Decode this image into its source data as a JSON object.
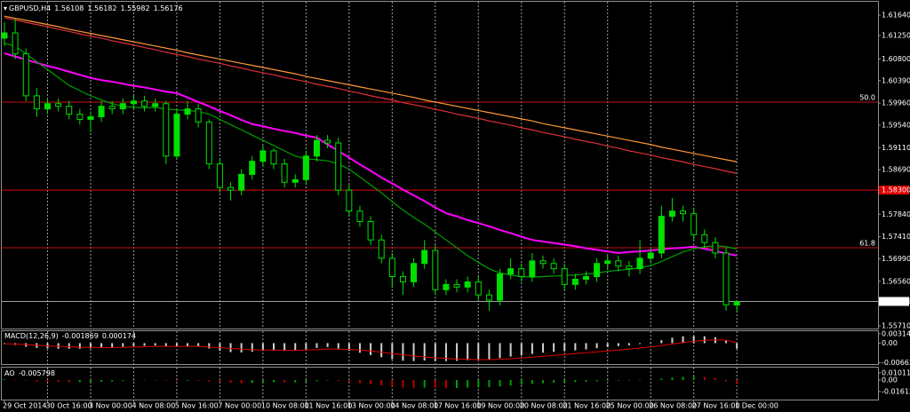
{
  "chart_data": {
    "type": "candlestick",
    "title": "GBPUSD,H4",
    "categories": [
      "29 Oct 2014",
      null,
      null,
      null,
      "30 Oct 16:00",
      null,
      null,
      null,
      "3 Nov 00:00",
      null,
      null,
      null,
      "4 Nov 08:00",
      null,
      null,
      null,
      "5 Nov 16:00",
      null,
      null,
      null,
      "7 Nov 00:00",
      null,
      null,
      null,
      "10 Nov 08:00",
      null,
      null,
      null,
      "11 Nov 16:00",
      null,
      null,
      null,
      "13 Nov 00:00",
      null,
      null,
      null,
      "14 Nov 08:00",
      null,
      null,
      null,
      "17 Nov 16:00",
      null,
      null,
      null,
      "19 Nov 00:00",
      null,
      null,
      null,
      "20 Nov 08:00",
      null,
      null,
      null,
      "21 Nov 16:00",
      null,
      null,
      null,
      "25 Nov 00:00",
      null,
      null,
      null,
      "26 Nov 08:00",
      null,
      null,
      null,
      "27 Nov 16:00",
      null,
      null,
      null,
      "1 Dec 00:00"
    ],
    "open": [
      1.612,
      1.613,
      1.609,
      1.601,
      1.5985,
      1.5995,
      1.599,
      1.5975,
      1.5965,
      1.597,
      1.599,
      1.5985,
      1.5995,
      1.6,
      1.599,
      1.5995,
      1.5895,
      1.5975,
      1.5985,
      1.596,
      1.588,
      1.5835,
      1.583,
      1.586,
      1.5885,
      1.5905,
      1.588,
      1.5845,
      1.585,
      1.5895,
      1.5925,
      1.592,
      1.583,
      1.579,
      1.577,
      1.5735,
      1.57,
      1.5665,
      1.5655,
      1.569,
      1.5715,
      1.564,
      1.565,
      1.5645,
      1.5655,
      1.563,
      1.562,
      1.567,
      1.568,
      1.5665,
      1.5695,
      1.569,
      1.568,
      1.565,
      1.566,
      1.5665,
      1.569,
      1.5695,
      1.5685,
      1.568,
      1.57,
      1.571,
      1.578,
      1.579,
      1.5785,
      1.5745,
      1.573,
      1.571,
      1.56108
    ],
    "high": [
      1.615,
      1.6158,
      1.61,
      1.6025,
      1.6005,
      1.6005,
      1.6,
      1.5985,
      1.598,
      1.6,
      1.6,
      1.6005,
      1.601,
      1.601,
      1.6005,
      1.6,
      1.5985,
      1.6,
      1.5995,
      1.5965,
      1.589,
      1.5845,
      1.587,
      1.5895,
      1.5915,
      1.591,
      1.589,
      1.586,
      1.5905,
      1.5935,
      1.5935,
      1.593,
      1.584,
      1.58,
      1.578,
      1.5745,
      1.571,
      1.5675,
      1.57,
      1.5735,
      1.5725,
      1.566,
      1.566,
      1.5665,
      1.5665,
      1.564,
      1.568,
      1.57,
      1.569,
      1.571,
      1.5705,
      1.57,
      1.569,
      1.567,
      1.5675,
      1.57,
      1.5705,
      1.5705,
      1.5695,
      1.5735,
      1.572,
      1.58,
      1.5815,
      1.58,
      1.5795,
      1.5755,
      1.574,
      1.572,
      1.56182
    ],
    "low": [
      1.6105,
      1.608,
      1.6,
      1.597,
      1.5975,
      1.598,
      1.5965,
      1.5955,
      1.594,
      1.596,
      1.5975,
      1.5975,
      1.5985,
      1.598,
      1.598,
      1.588,
      1.589,
      1.5965,
      1.595,
      1.587,
      1.5825,
      1.581,
      1.582,
      1.585,
      1.5875,
      1.587,
      1.5835,
      1.5835,
      1.584,
      1.5885,
      1.591,
      1.582,
      1.578,
      1.576,
      1.5725,
      1.569,
      1.5645,
      1.563,
      1.5645,
      1.568,
      1.563,
      1.563,
      1.5635,
      1.5635,
      1.562,
      1.56,
      1.561,
      1.566,
      1.5655,
      1.5655,
      1.568,
      1.567,
      1.564,
      1.564,
      1.565,
      1.5655,
      1.568,
      1.5675,
      1.5665,
      1.567,
      1.569,
      1.57,
      1.577,
      1.577,
      1.5735,
      1.572,
      1.57,
      1.56,
      1.55982
    ],
    "close": [
      1.613,
      1.609,
      1.601,
      1.5985,
      1.5995,
      1.599,
      1.5975,
      1.5965,
      1.597,
      1.599,
      1.5985,
      1.5995,
      1.6,
      1.599,
      1.5995,
      1.5895,
      1.5975,
      1.5985,
      1.596,
      1.588,
      1.5835,
      1.583,
      1.586,
      1.5885,
      1.5905,
      1.588,
      1.5845,
      1.585,
      1.5895,
      1.5925,
      1.592,
      1.583,
      1.579,
      1.577,
      1.5735,
      1.57,
      1.5665,
      1.5655,
      1.569,
      1.5715,
      1.564,
      1.565,
      1.5645,
      1.5655,
      1.563,
      1.562,
      1.567,
      1.568,
      1.5665,
      1.5695,
      1.569,
      1.568,
      1.565,
      1.566,
      1.5665,
      1.569,
      1.5695,
      1.5685,
      1.568,
      1.57,
      1.571,
      1.578,
      1.579,
      1.5785,
      1.5745,
      1.573,
      1.571,
      1.5611,
      1.56176
    ],
    "up_color": "#00e000",
    "down_color": "#000000",
    "overlays": [
      {
        "color": "#ff9933",
        "values": [
          1.6162,
          1.6158,
          1.6154,
          1.615,
          1.6146,
          1.6142,
          1.6137,
          1.6133,
          1.6129,
          1.6125,
          1.6121,
          1.6117,
          1.6113,
          1.6109,
          1.6105,
          1.6101,
          1.6097,
          1.6092,
          1.6088,
          1.6084,
          1.608,
          1.6076,
          1.6072,
          1.6068,
          1.6064,
          1.606,
          1.6056,
          1.6052,
          1.6047,
          1.6043,
          1.6039,
          1.6035,
          1.6031,
          1.6027,
          1.6023,
          1.6019,
          1.6015,
          1.6011,
          1.6007,
          1.6002,
          1.5998,
          1.5994,
          1.599,
          1.5986,
          1.5982,
          1.5978,
          1.5974,
          1.597,
          1.5966,
          1.5962,
          1.5957,
          1.5953,
          1.5949,
          1.5945,
          1.5941,
          1.5937,
          1.5933,
          1.5929,
          1.5925,
          1.5921,
          1.5917,
          1.5912,
          1.5908,
          1.5904,
          1.59,
          1.5896,
          1.5892,
          1.5888,
          1.5884
        ]
      },
      {
        "color": "#e0303a",
        "values": [
          1.6159,
          1.6155,
          1.615,
          1.6146,
          1.6142,
          1.6137,
          1.6133,
          1.6128,
          1.6124,
          1.612,
          1.6115,
          1.6111,
          1.6107,
          1.6102,
          1.6098,
          1.6093,
          1.6089,
          1.6085,
          1.608,
          1.6076,
          1.6072,
          1.6067,
          1.6063,
          1.6058,
          1.6054,
          1.605,
          1.6045,
          1.6041,
          1.6037,
          1.6032,
          1.6028,
          1.6024,
          1.6019,
          1.6015,
          1.601,
          1.6006,
          1.6002,
          1.5997,
          1.5993,
          1.5989,
          1.5984,
          1.598,
          1.5975,
          1.5971,
          1.5967,
          1.5962,
          1.5958,
          1.5954,
          1.5949,
          1.5945,
          1.594,
          1.5936,
          1.5932,
          1.5927,
          1.5923,
          1.5919,
          1.5914,
          1.591,
          1.5905,
          1.5901,
          1.5897,
          1.5892,
          1.5888,
          1.5884,
          1.5879,
          1.5875,
          1.5871,
          1.5866,
          1.5862
        ]
      },
      {
        "color": "#ff00ff",
        "values": [
          1.6091,
          1.6085,
          1.6079,
          1.6073,
          1.6067,
          1.6062,
          1.6056,
          1.605,
          1.6044,
          1.604,
          1.6037,
          1.6033,
          1.6029,
          1.6026,
          1.6022,
          1.6018,
          1.6015,
          1.6007,
          1.5998,
          1.599,
          1.5981,
          1.5973,
          1.5964,
          1.5956,
          1.5952,
          1.5947,
          1.5943,
          1.5939,
          1.5934,
          1.593,
          1.5917,
          1.5905,
          1.5892,
          1.5879,
          1.5867,
          1.5854,
          1.5843,
          1.5831,
          1.582,
          1.5809,
          1.5797,
          1.5786,
          1.578,
          1.5773,
          1.5767,
          1.5761,
          1.5754,
          1.5748,
          1.5741,
          1.5735,
          1.5732,
          1.5729,
          1.5726,
          1.5723,
          1.5719,
          1.5716,
          1.5713,
          1.571,
          1.5712,
          1.5713,
          1.5715,
          1.5717,
          1.5719,
          1.572,
          1.5722,
          1.5718,
          1.5714,
          1.5709,
          1.5705
        ]
      },
      {
        "color": "#00a000",
        "values": [
          1.611,
          1.6105,
          1.609,
          1.6075,
          1.606,
          1.6045,
          1.603,
          1.602,
          1.601,
          1.6002,
          1.5995,
          1.599,
          1.5988,
          1.5987,
          1.5988,
          1.5985,
          1.5983,
          1.5982,
          1.598,
          1.5975,
          1.5965,
          1.5955,
          1.5945,
          1.5935,
          1.5925,
          1.5915,
          1.5905,
          1.5895,
          1.589,
          1.5888,
          1.5886,
          1.588,
          1.587,
          1.5855,
          1.584,
          1.5825,
          1.5808,
          1.5792,
          1.5778,
          1.5765,
          1.575,
          1.5735,
          1.572,
          1.5705,
          1.5692,
          1.568,
          1.5672,
          1.5668,
          1.5665,
          1.5664,
          1.5665,
          1.5666,
          1.5667,
          1.5668,
          1.567,
          1.5672,
          1.5675,
          1.5677,
          1.5679,
          1.5682,
          1.5686,
          1.5694,
          1.5703,
          1.5712,
          1.5718,
          1.5722,
          1.5724,
          1.5722,
          1.5718
        ]
      }
    ],
    "levels": [
      {
        "value": 1.5998,
        "label": "50.0",
        "color": "#c01010",
        "tag": false
      },
      {
        "value": 1.583,
        "label": "1.58300",
        "color": "#e00000",
        "tag": true
      },
      {
        "value": 1.572,
        "label": "61.8",
        "color": "#c01010",
        "tag": false
      }
    ],
    "price_line_color": "#a0a0a0",
    "ylim": [
      1.55659,
      1.61894
    ],
    "yticks": [
      {
        "value": 1.6164,
        "label": "1.61640"
      },
      {
        "value": 1.6125,
        "label": "1.61250"
      },
      {
        "value": 1.608,
        "label": "1.60800"
      },
      {
        "value": 1.6039,
        "label": "1.60390"
      },
      {
        "value": 1.5996,
        "label": "1.59960"
      },
      {
        "value": 1.5954,
        "label": "1.59540"
      },
      {
        "value": 1.5911,
        "label": "1.59110"
      },
      {
        "value": 1.5869,
        "label": "1.58690"
      },
      {
        "value": 1.5784,
        "label": "1.57840"
      },
      {
        "value": 1.5741,
        "label": "1.57410"
      },
      {
        "value": 1.5699,
        "label": "1.56990"
      },
      {
        "value": 1.5656,
        "label": "1.56560"
      },
      {
        "value": 1.5571,
        "label": "1.55710"
      }
    ],
    "grid": true,
    "indicators": [
      {
        "type": "macd",
        "label": "MACD(12,26,9)",
        "color": "#d0d0d0",
        "signal_color": "#e00000",
        "values": [
          -0.0003,
          -0.0006,
          -0.0012,
          -0.0016,
          -0.0018,
          -0.0019,
          -0.0019,
          -0.0019,
          -0.0018,
          -0.0016,
          -0.0014,
          -0.0012,
          -0.001,
          -0.0009,
          -0.0008,
          -0.0012,
          -0.0012,
          -0.0011,
          -0.0012,
          -0.0018,
          -0.0025,
          -0.003,
          -0.0031,
          -0.0029,
          -0.0026,
          -0.0025,
          -0.0026,
          -0.0025,
          -0.0021,
          -0.0016,
          -0.0013,
          -0.0018,
          -0.0025,
          -0.0032,
          -0.004,
          -0.0047,
          -0.0054,
          -0.0059,
          -0.006,
          -0.0058,
          -0.006,
          -0.006,
          -0.0059,
          -0.0057,
          -0.0056,
          -0.0055,
          -0.005,
          -0.0045,
          -0.0041,
          -0.0036,
          -0.0032,
          -0.0029,
          -0.0027,
          -0.0024,
          -0.0021,
          -0.0017,
          -0.0013,
          -0.001,
          -0.0007,
          -0.0003,
          0.0,
          0.001,
          0.0018,
          0.0023,
          0.0024,
          0.0023,
          0.002,
          0.0008,
          -0.001869
        ],
        "signal": [
          -0.0002,
          -0.0003,
          -0.0005,
          -0.0007,
          -0.0009,
          -0.0011,
          -0.0012,
          -0.0014,
          -0.0014,
          -0.0015,
          -0.0015,
          -0.0014,
          -0.0013,
          -0.0012,
          -0.0011,
          -0.0011,
          -0.0011,
          -0.0011,
          -0.0011,
          -0.0013,
          -0.0015,
          -0.0018,
          -0.002,
          -0.0022,
          -0.0023,
          -0.0023,
          -0.0024,
          -0.0024,
          -0.0023,
          -0.0022,
          -0.002,
          -0.002,
          -0.0021,
          -0.0023,
          -0.0026,
          -0.003,
          -0.0035,
          -0.0039,
          -0.0043,
          -0.0046,
          -0.0049,
          -0.0051,
          -0.0053,
          -0.0054,
          -0.0055,
          -0.0055,
          -0.0054,
          -0.0052,
          -0.005,
          -0.0047,
          -0.0044,
          -0.0041,
          -0.0038,
          -0.0035,
          -0.0032,
          -0.0029,
          -0.0026,
          -0.0023,
          -0.002,
          -0.0016,
          -0.0013,
          -0.0008,
          -0.0003,
          0.0002,
          0.0006,
          0.0009,
          0.0011,
          0.001,
          0.000174
        ],
        "ylim": [
          -0.007,
          0.004
        ],
        "yticks": [
          0.003141,
          {
            "value": 0,
            "label": "0.00"
          },
          -0.006626
        ]
      },
      {
        "type": "ao",
        "label": "AO",
        "up_color": "#00a000",
        "down_color": "#c00000",
        "values": [
          0.001,
          0.0005,
          -0.001,
          -0.002,
          -0.0025,
          -0.0028,
          -0.003,
          -0.003,
          -0.0028,
          -0.0024,
          -0.002,
          -0.0015,
          -0.001,
          -0.0006,
          -0.0004,
          -0.001,
          -0.0012,
          -0.001,
          -0.0012,
          -0.002,
          -0.003,
          -0.004,
          -0.0045,
          -0.0042,
          -0.0035,
          -0.0032,
          -0.0034,
          -0.0033,
          -0.0025,
          -0.0015,
          -0.0008,
          -0.0015,
          -0.003,
          -0.0045,
          -0.006,
          -0.0075,
          -0.009,
          -0.0105,
          -0.011,
          -0.0108,
          -0.0112,
          -0.0115,
          -0.0113,
          -0.0108,
          -0.0104,
          -0.01,
          -0.009,
          -0.0078,
          -0.0068,
          -0.0055,
          -0.0045,
          -0.0038,
          -0.0035,
          -0.003,
          -0.0024,
          -0.0018,
          -0.0012,
          -0.0008,
          -0.0005,
          0.0,
          0.0005,
          0.002,
          0.0035,
          0.0045,
          0.0048,
          0.0045,
          0.003,
          -0.002,
          -0.005798
        ],
        "ylim": [
          -0.0275,
          0.0175
        ],
        "yticks": [
          0.010118,
          {
            "value": 0,
            "label": "0.00"
          },
          -0.016121
        ]
      }
    ]
  }
}
